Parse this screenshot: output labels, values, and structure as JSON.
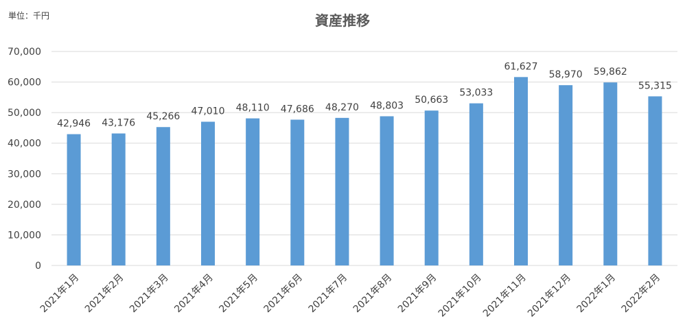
{
  "unit_label": "単位：千円",
  "chart_data": {
    "type": "bar",
    "title": "資産推移",
    "categories": [
      "2021年1月",
      "2021年2月",
      "2021年3月",
      "2021年4月",
      "2021年5月",
      "2021年6月",
      "2021年7月",
      "2021年8月",
      "2021年9月",
      "2021年10月",
      "2021年11月",
      "2021年12月",
      "2022年1月",
      "2022年2月"
    ],
    "values": [
      42946,
      43176,
      45266,
      47010,
      48110,
      47686,
      48270,
      48803,
      50663,
      53033,
      61627,
      58970,
      59862,
      55315
    ],
    "value_labels": [
      "42,946",
      "43,176",
      "45,266",
      "47,010",
      "48,110",
      "47,686",
      "48,270",
      "48,803",
      "50,663",
      "53,033",
      "61,627",
      "58,970",
      "59,862",
      "55,315"
    ],
    "yticks": [
      "0",
      "10,000",
      "20,000",
      "30,000",
      "40,000",
      "50,000",
      "60,000",
      "70,000"
    ],
    "ylim": [
      0,
      70000
    ],
    "grid": true,
    "legend": "none",
    "bar_color": "#5B9BD5",
    "grid_color": "#D9D9D9",
    "text_color": "#404040"
  }
}
